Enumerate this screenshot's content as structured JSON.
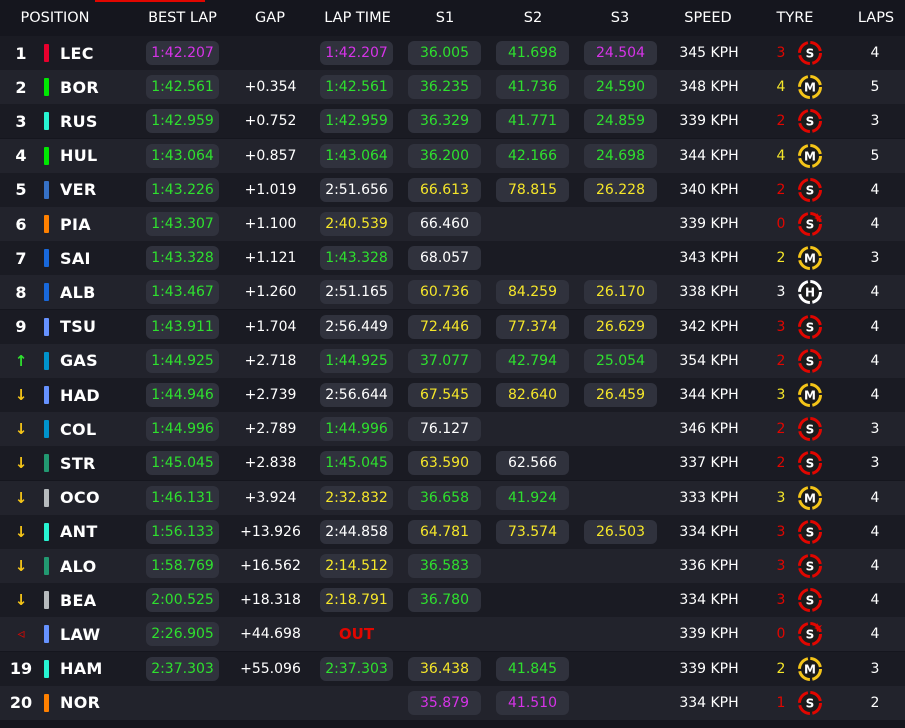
{
  "headers": {
    "position": "POSITION",
    "best_lap": "BEST LAP",
    "gap": "GAP",
    "lap_time": "LAP TIME",
    "s1": "S1",
    "s2": "S2",
    "s3": "S3",
    "speed": "SPEED",
    "tyre": "TYRE",
    "laps": "LAPS"
  },
  "colors": {
    "green": "#2ee02e",
    "yellow": "#f5e62a",
    "purple": "#d633e8",
    "white": "#ffffff",
    "red": "#e10600",
    "soft": "#e10600",
    "medium": "#f5c518",
    "hard": "#ffffff"
  },
  "rows": [
    {
      "pos": "1",
      "status": "number",
      "team_color": "#e8002d",
      "code": "LEC",
      "best_lap": "1:42.207",
      "best_lap_color": "purple",
      "gap": "",
      "lap_time": "1:42.207",
      "lap_time_color": "purple",
      "s1": "36.005",
      "s1_color": "green",
      "s2": "41.698",
      "s2_color": "green",
      "s3": "24.504",
      "s3_color": "purple",
      "speed": "345 KPH",
      "tyre_laps": "3",
      "tyre_laps_color": "red",
      "tyre": "S",
      "tyre_new": false,
      "laps": "4"
    },
    {
      "pos": "2",
      "status": "number",
      "team_color": "#00e701",
      "code": "BOR",
      "best_lap": "1:42.561",
      "best_lap_color": "green",
      "gap": "+0.354",
      "lap_time": "1:42.561",
      "lap_time_color": "green",
      "s1": "36.235",
      "s1_color": "green",
      "s2": "41.736",
      "s2_color": "green",
      "s3": "24.590",
      "s3_color": "green",
      "speed": "348 KPH",
      "tyre_laps": "4",
      "tyre_laps_color": "yellow",
      "tyre": "M",
      "tyre_new": false,
      "laps": "5"
    },
    {
      "pos": "3",
      "status": "number",
      "team_color": "#27f4d2",
      "code": "RUS",
      "best_lap": "1:42.959",
      "best_lap_color": "green",
      "gap": "+0.752",
      "lap_time": "1:42.959",
      "lap_time_color": "green",
      "s1": "36.329",
      "s1_color": "green",
      "s2": "41.771",
      "s2_color": "green",
      "s3": "24.859",
      "s3_color": "green",
      "speed": "339 KPH",
      "tyre_laps": "2",
      "tyre_laps_color": "red",
      "tyre": "S",
      "tyre_new": false,
      "laps": "3"
    },
    {
      "pos": "4",
      "status": "number",
      "team_color": "#00e701",
      "code": "HUL",
      "best_lap": "1:43.064",
      "best_lap_color": "green",
      "gap": "+0.857",
      "lap_time": "1:43.064",
      "lap_time_color": "green",
      "s1": "36.200",
      "s1_color": "green",
      "s2": "42.166",
      "s2_color": "green",
      "s3": "24.698",
      "s3_color": "green",
      "speed": "344 KPH",
      "tyre_laps": "4",
      "tyre_laps_color": "yellow",
      "tyre": "M",
      "tyre_new": false,
      "laps": "5"
    },
    {
      "pos": "5",
      "status": "number",
      "team_color": "#3671c6",
      "code": "VER",
      "best_lap": "1:43.226",
      "best_lap_color": "green",
      "gap": "+1.019",
      "lap_time": "2:51.656",
      "lap_time_color": "white",
      "s1": "66.613",
      "s1_color": "yellow",
      "s2": "78.815",
      "s2_color": "yellow",
      "s3": "26.228",
      "s3_color": "yellow",
      "speed": "340 KPH",
      "tyre_laps": "2",
      "tyre_laps_color": "red",
      "tyre": "S",
      "tyre_new": false,
      "laps": "4"
    },
    {
      "pos": "6",
      "status": "number",
      "team_color": "#ff8000",
      "code": "PIA",
      "best_lap": "1:43.307",
      "best_lap_color": "green",
      "gap": "+1.100",
      "lap_time": "2:40.539",
      "lap_time_color": "yellow",
      "s1": "66.460",
      "s1_color": "white",
      "s2": "",
      "s2_color": "white",
      "s3": "",
      "s3_color": "white",
      "speed": "339 KPH",
      "tyre_laps": "0",
      "tyre_laps_color": "red",
      "tyre": "S",
      "tyre_new": true,
      "laps": "4"
    },
    {
      "pos": "7",
      "status": "number",
      "team_color": "#1868db",
      "code": "SAI",
      "best_lap": "1:43.328",
      "best_lap_color": "green",
      "gap": "+1.121",
      "lap_time": "1:43.328",
      "lap_time_color": "green",
      "s1": "68.057",
      "s1_color": "white",
      "s2": "",
      "s2_color": "white",
      "s3": "",
      "s3_color": "white",
      "speed": "343 KPH",
      "tyre_laps": "2",
      "tyre_laps_color": "yellow",
      "tyre": "M",
      "tyre_new": false,
      "laps": "3"
    },
    {
      "pos": "8",
      "status": "number",
      "team_color": "#1868db",
      "code": "ALB",
      "best_lap": "1:43.467",
      "best_lap_color": "green",
      "gap": "+1.260",
      "lap_time": "2:51.165",
      "lap_time_color": "white",
      "s1": "60.736",
      "s1_color": "yellow",
      "s2": "84.259",
      "s2_color": "yellow",
      "s3": "26.170",
      "s3_color": "yellow",
      "speed": "338 KPH",
      "tyre_laps": "3",
      "tyre_laps_color": "white",
      "tyre": "H",
      "tyre_new": false,
      "laps": "4"
    },
    {
      "pos": "9",
      "status": "number",
      "team_color": "#6692ff",
      "code": "TSU",
      "best_lap": "1:43.911",
      "best_lap_color": "green",
      "gap": "+1.704",
      "lap_time": "2:56.449",
      "lap_time_color": "white",
      "s1": "72.446",
      "s1_color": "yellow",
      "s2": "77.374",
      "s2_color": "yellow",
      "s3": "26.629",
      "s3_color": "yellow",
      "speed": "342 KPH",
      "tyre_laps": "3",
      "tyre_laps_color": "red",
      "tyre": "S",
      "tyre_new": false,
      "laps": "4"
    },
    {
      "pos": "↑",
      "status": "up",
      "team_color": "#0093cc",
      "code": "GAS",
      "best_lap": "1:44.925",
      "best_lap_color": "green",
      "gap": "+2.718",
      "lap_time": "1:44.925",
      "lap_time_color": "green",
      "s1": "37.077",
      "s1_color": "green",
      "s2": "42.794",
      "s2_color": "green",
      "s3": "25.054",
      "s3_color": "green",
      "speed": "354 KPH",
      "tyre_laps": "2",
      "tyre_laps_color": "red",
      "tyre": "S",
      "tyre_new": false,
      "laps": "4"
    },
    {
      "pos": "↓",
      "status": "down",
      "team_color": "#6692ff",
      "code": "HAD",
      "best_lap": "1:44.946",
      "best_lap_color": "green",
      "gap": "+2.739",
      "lap_time": "2:56.644",
      "lap_time_color": "white",
      "s1": "67.545",
      "s1_color": "yellow",
      "s2": "82.640",
      "s2_color": "yellow",
      "s3": "26.459",
      "s3_color": "yellow",
      "speed": "344 KPH",
      "tyre_laps": "3",
      "tyre_laps_color": "yellow",
      "tyre": "M",
      "tyre_new": false,
      "laps": "4"
    },
    {
      "pos": "↓",
      "status": "down",
      "team_color": "#0093cc",
      "code": "COL",
      "best_lap": "1:44.996",
      "best_lap_color": "green",
      "gap": "+2.789",
      "lap_time": "1:44.996",
      "lap_time_color": "green",
      "s1": "76.127",
      "s1_color": "white",
      "s2": "",
      "s2_color": "white",
      "s3": "",
      "s3_color": "white",
      "speed": "346 KPH",
      "tyre_laps": "2",
      "tyre_laps_color": "red",
      "tyre": "S",
      "tyre_new": false,
      "laps": "3"
    },
    {
      "pos": "↓",
      "status": "down",
      "team_color": "#229971",
      "code": "STR",
      "best_lap": "1:45.045",
      "best_lap_color": "green",
      "gap": "+2.838",
      "lap_time": "1:45.045",
      "lap_time_color": "green",
      "s1": "63.590",
      "s1_color": "yellow",
      "s2": "62.566",
      "s2_color": "white",
      "s3": "",
      "s3_color": "white",
      "speed": "337 KPH",
      "tyre_laps": "2",
      "tyre_laps_color": "red",
      "tyre": "S",
      "tyre_new": false,
      "laps": "3"
    },
    {
      "pos": "↓",
      "status": "down",
      "team_color": "#b6babd",
      "code": "OCO",
      "best_lap": "1:46.131",
      "best_lap_color": "green",
      "gap": "+3.924",
      "lap_time": "2:32.832",
      "lap_time_color": "yellow",
      "s1": "36.658",
      "s1_color": "green",
      "s2": "41.924",
      "s2_color": "green",
      "s3": "",
      "s3_color": "white",
      "speed": "333 KPH",
      "tyre_laps": "3",
      "tyre_laps_color": "yellow",
      "tyre": "M",
      "tyre_new": false,
      "laps": "4"
    },
    {
      "pos": "↓",
      "status": "down",
      "team_color": "#27f4d2",
      "code": "ANT",
      "best_lap": "1:56.133",
      "best_lap_color": "green",
      "gap": "+13.926",
      "lap_time": "2:44.858",
      "lap_time_color": "white",
      "s1": "64.781",
      "s1_color": "yellow",
      "s2": "73.574",
      "s2_color": "yellow",
      "s3": "26.503",
      "s3_color": "yellow",
      "speed": "334 KPH",
      "tyre_laps": "3",
      "tyre_laps_color": "red",
      "tyre": "S",
      "tyre_new": false,
      "laps": "4"
    },
    {
      "pos": "↓",
      "status": "down",
      "team_color": "#229971",
      "code": "ALO",
      "best_lap": "1:58.769",
      "best_lap_color": "green",
      "gap": "+16.562",
      "lap_time": "2:14.512",
      "lap_time_color": "yellow",
      "s1": "36.583",
      "s1_color": "green",
      "s2": "",
      "s2_color": "white",
      "s3": "",
      "s3_color": "white",
      "speed": "336 KPH",
      "tyre_laps": "3",
      "tyre_laps_color": "red",
      "tyre": "S",
      "tyre_new": false,
      "laps": "4"
    },
    {
      "pos": "↓",
      "status": "down",
      "team_color": "#b6babd",
      "code": "BEA",
      "best_lap": "2:00.525",
      "best_lap_color": "green",
      "gap": "+18.318",
      "lap_time": "2:18.791",
      "lap_time_color": "yellow",
      "s1": "36.780",
      "s1_color": "green",
      "s2": "",
      "s2_color": "white",
      "s3": "",
      "s3_color": "white",
      "speed": "334 KPH",
      "tyre_laps": "3",
      "tyre_laps_color": "red",
      "tyre": "S",
      "tyre_new": false,
      "laps": "4"
    },
    {
      "pos": "◃",
      "status": "out",
      "team_color": "#6692ff",
      "code": "LAW",
      "best_lap": "2:26.905",
      "best_lap_color": "green",
      "gap": "+44.698",
      "lap_time": "OUT",
      "lap_time_color": "red",
      "s1": "",
      "s1_color": "white",
      "s2": "",
      "s2_color": "white",
      "s3": "",
      "s3_color": "white",
      "speed": "339 KPH",
      "tyre_laps": "0",
      "tyre_laps_color": "red",
      "tyre": "S",
      "tyre_new": true,
      "laps": "4"
    },
    {
      "pos": "19",
      "status": "number",
      "team_color": "#27f4d2",
      "code": "HAM",
      "best_lap": "2:37.303",
      "best_lap_color": "green",
      "gap": "+55.096",
      "lap_time": "2:37.303",
      "lap_time_color": "green",
      "s1": "36.438",
      "s1_color": "yellow",
      "s2": "41.845",
      "s2_color": "green",
      "s3": "",
      "s3_color": "white",
      "speed": "339 KPH",
      "tyre_laps": "2",
      "tyre_laps_color": "yellow",
      "tyre": "M",
      "tyre_new": false,
      "laps": "3"
    },
    {
      "pos": "20",
      "status": "number",
      "team_color": "#ff8000",
      "code": "NOR",
      "best_lap": "",
      "best_lap_color": "white",
      "gap": "",
      "lap_time": "",
      "lap_time_color": "white",
      "s1": "35.879",
      "s1_color": "purple",
      "s2": "41.510",
      "s2_color": "purple",
      "s3": "",
      "s3_color": "white",
      "speed": "334 KPH",
      "tyre_laps": "1",
      "tyre_laps_color": "red",
      "tyre": "S",
      "tyre_new": false,
      "laps": "2"
    }
  ]
}
